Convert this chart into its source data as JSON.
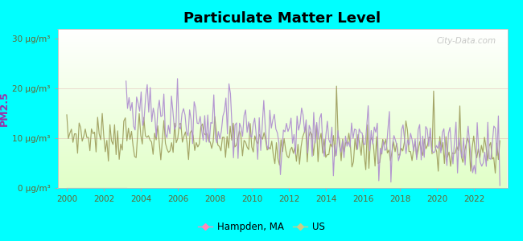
{
  "title": "Particulate Matter Level",
  "ylabel": "PM2.5",
  "ylim": [
    0,
    32
  ],
  "yticks": [
    0,
    10,
    20,
    30
  ],
  "ytick_labels": [
    "0 μg/m³",
    "10 μg/m³",
    "20 μg/m³",
    "30 μg/m³"
  ],
  "xlim": [
    1999.5,
    2023.8
  ],
  "xticks": [
    2000,
    2002,
    2004,
    2006,
    2008,
    2010,
    2012,
    2014,
    2016,
    2018,
    2020,
    2022
  ],
  "background_outer": "#00FFFF",
  "hampden_color": "#b090d0",
  "us_color": "#a0a060",
  "legend_hampden_color": "#ff88bb",
  "legend_us_color": "#cccc88",
  "watermark": "City-Data.com",
  "title_fontsize": 13,
  "ylabel_fontsize": 9,
  "ylabel_color": "#9933aa",
  "tick_fontsize": 7.5,
  "tick_color": "#666633"
}
